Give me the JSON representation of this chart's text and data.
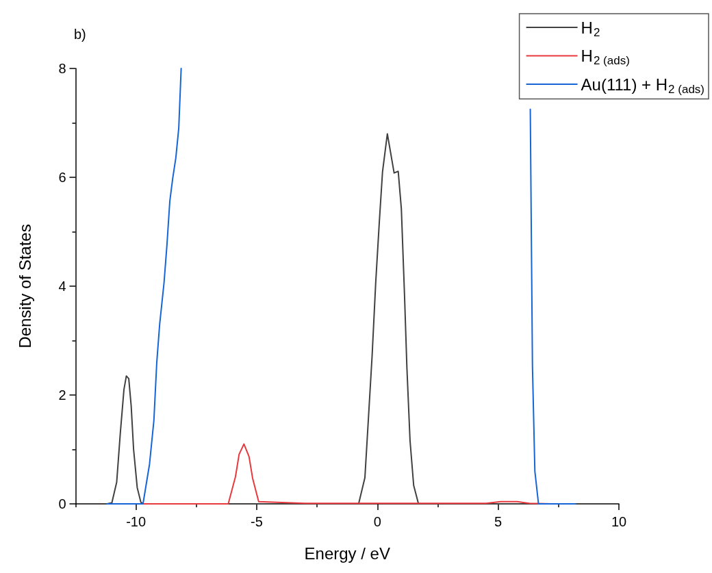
{
  "chart_data": {
    "type": "line",
    "xlabel": "Energy / eV",
    "ylabel": "Density of States",
    "annotations": [
      "b)"
    ],
    "xlim": [
      -12.5,
      10
    ],
    "xticks": [
      {
        "value": -12.5,
        "label": null
      },
      -10,
      {
        "value": -7.5,
        "label": null
      },
      -5,
      {
        "value": -2.5,
        "label": null
      },
      0,
      {
        "value": 2.5,
        "label": null
      },
      5,
      {
        "value": 7.5,
        "label": null
      },
      10
    ],
    "ylim": [
      0,
      8
    ],
    "yticks": [
      0,
      {
        "value": 1,
        "label": null
      },
      2,
      {
        "value": 3,
        "label": null
      },
      4,
      {
        "value": 5,
        "label": null
      },
      6,
      {
        "value": 7,
        "label": null
      },
      8
    ],
    "legend": "top right",
    "marker": "none",
    "line_style": "solid",
    "series": [
      {
        "name": "H$_{2}$",
        "color": "#404040",
        "x": [
          -11.2,
          -11.0,
          -10.8,
          -10.65,
          -10.5,
          -10.4,
          -10.3,
          -10.2,
          -10.1,
          -9.95,
          -9.8,
          -9.7,
          -5,
          -0.78,
          -0.52,
          -0.37,
          -0.22,
          -0.07,
          0.08,
          0.21,
          0.41,
          0.69,
          0.86,
          0.99,
          1.12,
          1.22,
          1.35,
          1.5,
          1.7,
          5,
          8.2
        ],
        "values": [
          0,
          0.02,
          0.4,
          1.3,
          2.1,
          2.35,
          2.3,
          1.8,
          1.0,
          0.3,
          0.03,
          0,
          0,
          0,
          0.48,
          1.6,
          2.73,
          4.08,
          5.2,
          6.1,
          6.8,
          6.08,
          6.11,
          5.42,
          3.85,
          2.5,
          1.16,
          0.34,
          0,
          0,
          0
        ]
      },
      {
        "name": "H$_{2 (ads)}$",
        "color": "#e8383d",
        "x": [
          -9.7,
          -7,
          -6.18,
          -5.88,
          -5.73,
          -5.53,
          -5.32,
          -5.17,
          -4.92,
          -3,
          0,
          3,
          4.5,
          5.1,
          5.8,
          6.3,
          7.2
        ],
        "values": [
          0,
          0,
          0,
          0.5,
          0.91,
          1.1,
          0.87,
          0.47,
          0.04,
          0.01,
          0.01,
          0.01,
          0.01,
          0.04,
          0.04,
          0.01,
          0
        ]
      },
      {
        "name": "Au(111) + H$_{2 (ads)}$",
        "color": "#1764d8",
        "x": [
          -11.2,
          -9.71,
          -9.44,
          -9.26,
          -9.14,
          -9.02,
          -8.84,
          -8.72,
          -8.6,
          -8.48,
          -8.35,
          -8.23,
          -8.13,
          null,
          6.33,
          6.42,
          6.52,
          6.67,
          8.2
        ],
        "values": [
          0,
          0,
          0.73,
          1.53,
          2.6,
          3.3,
          4.06,
          4.75,
          5.56,
          5.98,
          6.36,
          6.9,
          8.0,
          null,
          7.25,
          2.53,
          0.6,
          0,
          0
        ]
      }
    ]
  }
}
